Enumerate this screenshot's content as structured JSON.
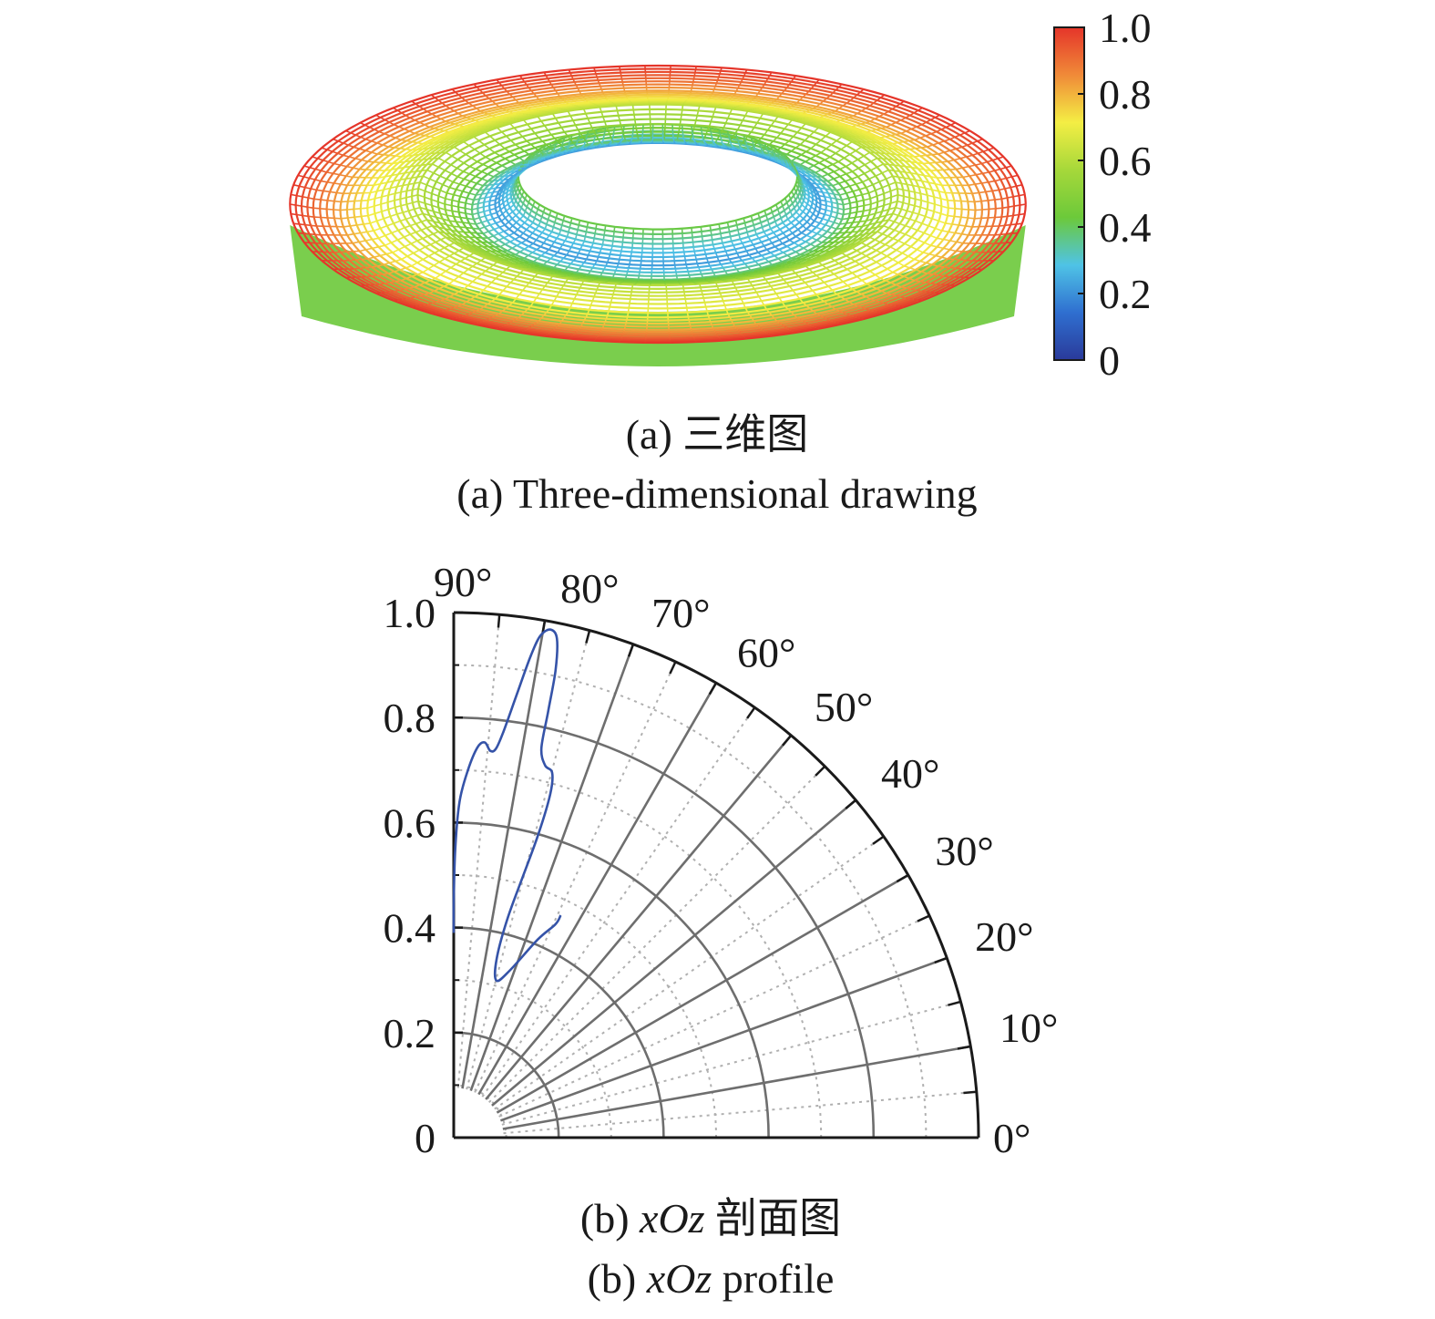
{
  "chart_data": [
    {
      "type": "surface",
      "colorbar": {
        "min": 0,
        "max": 1.0,
        "ticks": [
          "0",
          "0.2",
          "0.4",
          "0.6",
          "0.8",
          "1.0"
        ],
        "colors": [
          "#2a3a9a",
          "#2f6fd0",
          "#4fc3e6",
          "#6cc93a",
          "#a6d83a",
          "#f4ee44",
          "#f08a38",
          "#e5352a"
        ]
      },
      "caption_cn": "(a) 三维图",
      "caption_en": "(a) Three-dimensional drawing"
    },
    {
      "type": "polar-line",
      "angle_range": [
        0,
        90
      ],
      "angle_ticks": [
        "0°",
        "10°",
        "20°",
        "30°",
        "40°",
        "50°",
        "60°",
        "70°",
        "80°",
        "90°"
      ],
      "r_range": [
        0,
        1.0
      ],
      "r_ticks": [
        "0",
        "0.2",
        "0.4",
        "0.6",
        "0.8",
        "1.0"
      ],
      "grid": true,
      "series": [
        {
          "color": "#3553a8",
          "points": [
            [
              90,
              0.39
            ],
            [
              90,
              0.45
            ],
            [
              89.7,
              0.55
            ],
            [
              89,
              0.64
            ],
            [
              87.8,
              0.7
            ],
            [
              86.5,
              0.745
            ],
            [
              85.5,
              0.755
            ],
            [
              84.6,
              0.74
            ],
            [
              83.8,
              0.745
            ],
            [
              83,
              0.78
            ],
            [
              81.8,
              0.86
            ],
            [
              80.9,
              0.93
            ],
            [
              80.2,
              0.97
            ],
            [
              79.2,
              0.985
            ],
            [
              78.3,
              0.97
            ],
            [
              77.7,
              0.91
            ],
            [
              77.5,
              0.83
            ],
            [
              77.3,
              0.76
            ],
            [
              76.2,
              0.73
            ],
            [
              74.9,
              0.72
            ],
            [
              74.3,
              0.68
            ],
            [
              74.4,
              0.6
            ],
            [
              75.1,
              0.52
            ],
            [
              76.2,
              0.43
            ],
            [
              76.5,
              0.35
            ],
            [
              74.8,
              0.31
            ],
            [
              71.5,
              0.335
            ],
            [
              67,
              0.41
            ],
            [
              64.5,
              0.45
            ],
            [
              64.3,
              0.47
            ]
          ]
        }
      ],
      "caption_cn_prefix": "(b) ",
      "caption_cn_var": "xOz",
      "caption_cn_suffix": " 剖面图",
      "caption_en_prefix": "(b) ",
      "caption_en_var": "xOz",
      "caption_en_suffix": " profile"
    }
  ]
}
